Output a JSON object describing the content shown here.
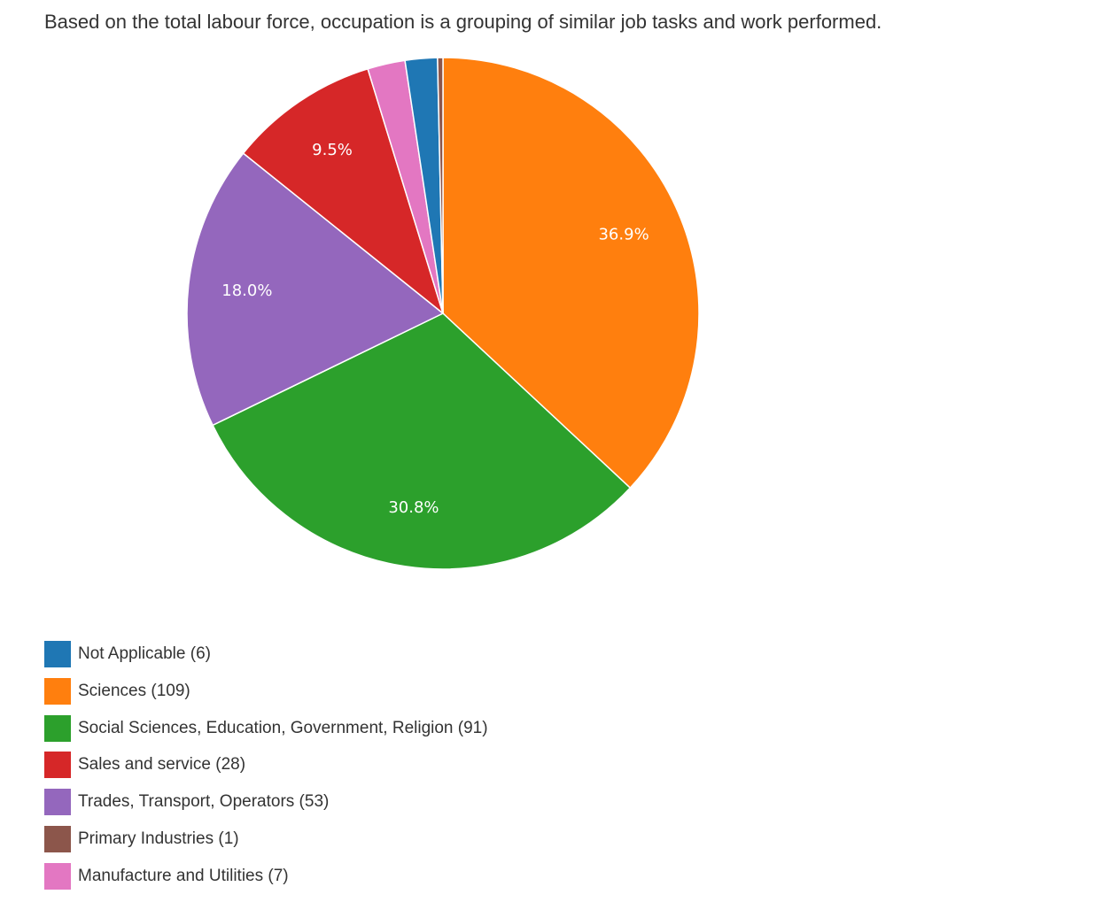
{
  "chart_data": {
    "type": "pie",
    "title": "Based on the total labour force, occupation is a grouping of similar job tasks and work performed.",
    "slices": [
      {
        "label": "Sciences",
        "count": 109,
        "pct_label": "36.9%",
        "color": "#ff7f0e"
      },
      {
        "label": "Social Sciences, Education, Government, Religion",
        "count": 91,
        "pct_label": "30.8%",
        "color": "#2ca02c"
      },
      {
        "label": "Trades, Transport, Operators",
        "count": 53,
        "pct_label": "18.0%",
        "color": "#9467bd"
      },
      {
        "label": "Sales and service",
        "count": 28,
        "pct_label": "9.5%",
        "color": "#d62728"
      },
      {
        "label": "Manufacture and Utilities",
        "count": 7,
        "pct_label": "",
        "color": "#e377c2"
      },
      {
        "label": "Not Applicable",
        "count": 6,
        "pct_label": "",
        "color": "#1f77b4"
      },
      {
        "label": "Primary Industries",
        "count": 1,
        "pct_label": "",
        "color": "#8c564b"
      }
    ],
    "legend": [
      {
        "text": "Not Applicable (6)",
        "color": "#1f77b4"
      },
      {
        "text": "Sciences (109)",
        "color": "#ff7f0e"
      },
      {
        "text": "Social Sciences, Education, Government, Religion (91)",
        "color": "#2ca02c"
      },
      {
        "text": "Sales and service (28)",
        "color": "#d62728"
      },
      {
        "text": "Trades, Transport, Operators (53)",
        "color": "#9467bd"
      },
      {
        "text": "Primary Industries (1)",
        "color": "#8c564b"
      },
      {
        "text": "Manufacture and Utilities (7)",
        "color": "#e377c2"
      }
    ],
    "legend_position": "bottom-left"
  }
}
